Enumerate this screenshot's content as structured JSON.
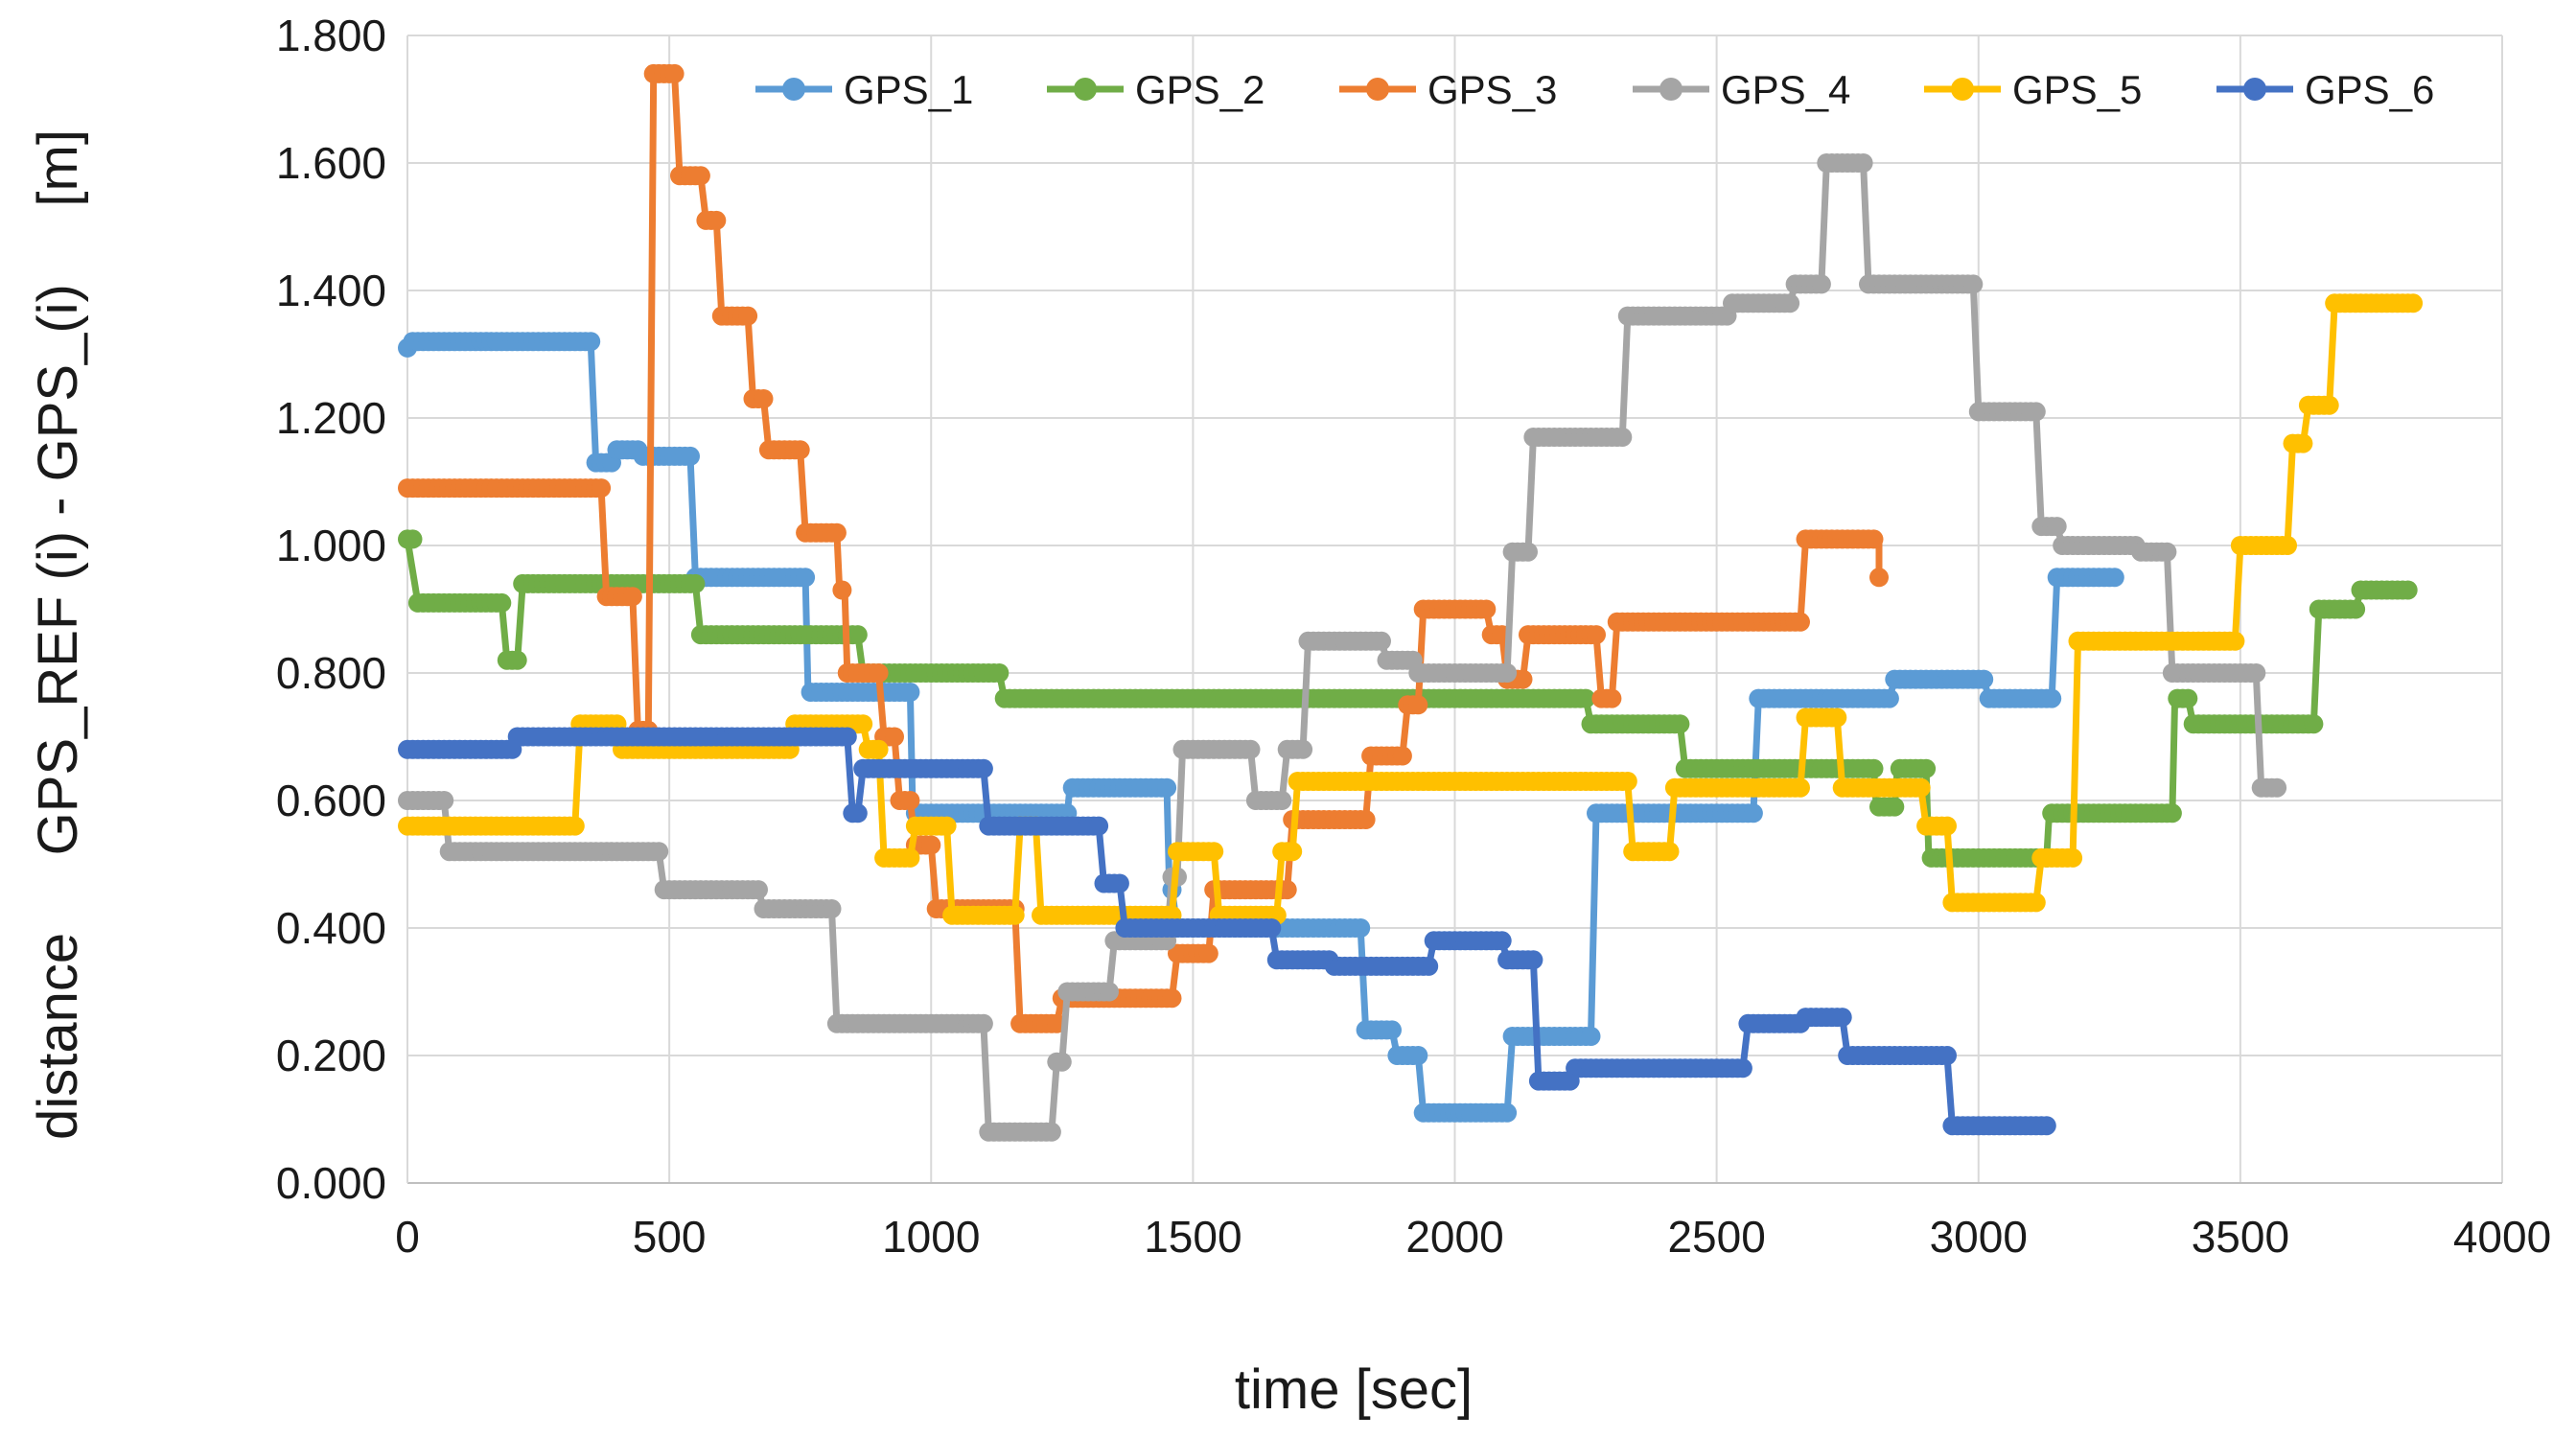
{
  "chart_data": {
    "type": "line",
    "title": "",
    "xlabel": "time [sec]",
    "ylabel": "distance     GPS_REF (i) - GPS_(i)     [m]",
    "xlim": [
      0,
      4000
    ],
    "ylim": [
      0,
      1.8
    ],
    "x_ticks": [
      0,
      500,
      1000,
      1500,
      2000,
      2500,
      3000,
      3500,
      4000
    ],
    "x_tick_labels": [
      "0",
      "500",
      "1000",
      "1500",
      "2000",
      "2500",
      "3000",
      "3500",
      "4000"
    ],
    "y_ticks": [
      0,
      0.2,
      0.4,
      0.6,
      0.8,
      1.0,
      1.2,
      1.4,
      1.6,
      1.8
    ],
    "y_tick_labels": [
      "0.000",
      "0.200",
      "0.400",
      "0.600",
      "0.800",
      "1.000",
      "1.200",
      "1.400",
      "1.600",
      "1.800"
    ],
    "grid": true,
    "legend_position": "top",
    "marker_interval_sec": 10,
    "series": [
      {
        "name": "GPS_1",
        "color": "#5B9BD5",
        "steps": [
          [
            0,
            1.31
          ],
          [
            10,
            1.32
          ],
          [
            350,
            1.32
          ],
          [
            360,
            1.13
          ],
          [
            390,
            1.13
          ],
          [
            395,
            1.15
          ],
          [
            440,
            1.15
          ],
          [
            445,
            1.14
          ],
          [
            540,
            1.14
          ],
          [
            550,
            0.95
          ],
          [
            760,
            0.95
          ],
          [
            765,
            0.77
          ],
          [
            960,
            0.77
          ],
          [
            965,
            0.58
          ],
          [
            1130,
            0.58
          ],
          [
            1135,
            0.58
          ],
          [
            1260,
            0.58
          ],
          [
            1265,
            0.62
          ],
          [
            1450,
            0.62
          ],
          [
            1455,
            0.46
          ],
          [
            1460,
            0.46
          ],
          [
            1470,
            0.4
          ],
          [
            1820,
            0.4
          ],
          [
            1830,
            0.24
          ],
          [
            1880,
            0.24
          ],
          [
            1890,
            0.2
          ],
          [
            1930,
            0.2
          ],
          [
            1940,
            0.11
          ],
          [
            2100,
            0.11
          ],
          [
            2110,
            0.23
          ],
          [
            2260,
            0.23
          ],
          [
            2270,
            0.58
          ],
          [
            2570,
            0.58
          ],
          [
            2580,
            0.76
          ],
          [
            2760,
            0.76
          ],
          [
            2765,
            0.76
          ],
          [
            2830,
            0.76
          ],
          [
            2840,
            0.79
          ],
          [
            3010,
            0.79
          ],
          [
            3020,
            0.76
          ],
          [
            3140,
            0.76
          ],
          [
            3150,
            0.95
          ],
          [
            3260,
            0.95
          ]
        ]
      },
      {
        "name": "GPS_2",
        "color": "#70AD47",
        "steps": [
          [
            0,
            1.01
          ],
          [
            20,
            0.91
          ],
          [
            180,
            0.91
          ],
          [
            190,
            0.82
          ],
          [
            210,
            0.82
          ],
          [
            220,
            0.94
          ],
          [
            550,
            0.94
          ],
          [
            560,
            0.86
          ],
          [
            860,
            0.86
          ],
          [
            870,
            0.8
          ],
          [
            1130,
            0.8
          ],
          [
            1140,
            0.76
          ],
          [
            2250,
            0.76
          ],
          [
            2260,
            0.72
          ],
          [
            2430,
            0.72
          ],
          [
            2440,
            0.65
          ],
          [
            2800,
            0.65
          ],
          [
            2805,
            0.59
          ],
          [
            2840,
            0.59
          ],
          [
            2845,
            0.65
          ],
          [
            2900,
            0.65
          ],
          [
            2905,
            0.51
          ],
          [
            3130,
            0.51
          ],
          [
            3135,
            0.58
          ],
          [
            3370,
            0.58
          ],
          [
            3375,
            0.76
          ],
          [
            3400,
            0.76
          ],
          [
            3410,
            0.72
          ],
          [
            3640,
            0.72
          ],
          [
            3650,
            0.9
          ],
          [
            3720,
            0.9
          ],
          [
            3730,
            0.93
          ],
          [
            3820,
            0.93
          ]
        ]
      },
      {
        "name": "GPS_3",
        "color": "#ED7D31",
        "steps": [
          [
            0,
            1.09
          ],
          [
            370,
            1.09
          ],
          [
            380,
            0.92
          ],
          [
            430,
            0.92
          ],
          [
            440,
            0.71
          ],
          [
            460,
            0.71
          ],
          [
            470,
            1.74
          ],
          [
            510,
            1.74
          ],
          [
            520,
            1.58
          ],
          [
            560,
            1.58
          ],
          [
            570,
            1.51
          ],
          [
            590,
            1.51
          ],
          [
            600,
            1.36
          ],
          [
            650,
            1.36
          ],
          [
            660,
            1.23
          ],
          [
            680,
            1.23
          ],
          [
            690,
            1.15
          ],
          [
            750,
            1.15
          ],
          [
            760,
            1.02
          ],
          [
            820,
            1.02
          ],
          [
            825,
            0.93
          ],
          [
            835,
            0.93
          ],
          [
            840,
            0.8
          ],
          [
            900,
            0.8
          ],
          [
            910,
            0.7
          ],
          [
            930,
            0.7
          ],
          [
            940,
            0.6
          ],
          [
            960,
            0.6
          ],
          [
            970,
            0.53
          ],
          [
            1000,
            0.53
          ],
          [
            1010,
            0.43
          ],
          [
            1160,
            0.43
          ],
          [
            1170,
            0.25
          ],
          [
            1240,
            0.25
          ],
          [
            1250,
            0.29
          ],
          [
            1460,
            0.29
          ],
          [
            1470,
            0.36
          ],
          [
            1530,
            0.36
          ],
          [
            1540,
            0.46
          ],
          [
            1680,
            0.46
          ],
          [
            1690,
            0.57
          ],
          [
            1830,
            0.57
          ],
          [
            1840,
            0.67
          ],
          [
            1900,
            0.67
          ],
          [
            1910,
            0.75
          ],
          [
            1930,
            0.75
          ],
          [
            1940,
            0.9
          ],
          [
            2060,
            0.9
          ],
          [
            2070,
            0.86
          ],
          [
            2090,
            0.86
          ],
          [
            2100,
            0.79
          ],
          [
            2130,
            0.79
          ],
          [
            2140,
            0.86
          ],
          [
            2270,
            0.86
          ],
          [
            2280,
            0.76
          ],
          [
            2300,
            0.76
          ],
          [
            2310,
            0.88
          ],
          [
            2660,
            0.88
          ],
          [
            2670,
            1.01
          ],
          [
            2810,
            1.01
          ],
          [
            2810,
            0.95
          ]
        ]
      },
      {
        "name": "GPS_4",
        "color": "#A5A5A5",
        "steps": [
          [
            0,
            0.6
          ],
          [
            70,
            0.6
          ],
          [
            80,
            0.52
          ],
          [
            480,
            0.52
          ],
          [
            490,
            0.46
          ],
          [
            670,
            0.46
          ],
          [
            680,
            0.43
          ],
          [
            810,
            0.43
          ],
          [
            820,
            0.25
          ],
          [
            1100,
            0.25
          ],
          [
            1110,
            0.08
          ],
          [
            1230,
            0.08
          ],
          [
            1240,
            0.19
          ],
          [
            1250,
            0.19
          ],
          [
            1260,
            0.3
          ],
          [
            1340,
            0.3
          ],
          [
            1350,
            0.38
          ],
          [
            1450,
            0.38
          ],
          [
            1460,
            0.48
          ],
          [
            1470,
            0.48
          ],
          [
            1480,
            0.68
          ],
          [
            1610,
            0.68
          ],
          [
            1620,
            0.6
          ],
          [
            1670,
            0.6
          ],
          [
            1680,
            0.68
          ],
          [
            1710,
            0.68
          ],
          [
            1720,
            0.85
          ],
          [
            1860,
            0.85
          ],
          [
            1870,
            0.82
          ],
          [
            1920,
            0.82
          ],
          [
            1930,
            0.8
          ],
          [
            2100,
            0.8
          ],
          [
            2110,
            0.99
          ],
          [
            2140,
            0.99
          ],
          [
            2150,
            1.17
          ],
          [
            2320,
            1.17
          ],
          [
            2330,
            1.36
          ],
          [
            2520,
            1.36
          ],
          [
            2530,
            1.38
          ],
          [
            2640,
            1.38
          ],
          [
            2650,
            1.41
          ],
          [
            2700,
            1.41
          ],
          [
            2710,
            1.6
          ],
          [
            2780,
            1.6
          ],
          [
            2790,
            1.41
          ],
          [
            2990,
            1.41
          ],
          [
            3000,
            1.21
          ],
          [
            3110,
            1.21
          ],
          [
            3120,
            1.03
          ],
          [
            3150,
            1.03
          ],
          [
            3160,
            1.0
          ],
          [
            3300,
            1.0
          ],
          [
            3310,
            0.99
          ],
          [
            3360,
            0.99
          ],
          [
            3370,
            0.8
          ],
          [
            3530,
            0.8
          ],
          [
            3540,
            0.62
          ],
          [
            3570,
            0.62
          ]
        ]
      },
      {
        "name": "GPS_5",
        "color": "#FFC000",
        "steps": [
          [
            0,
            0.56
          ],
          [
            320,
            0.56
          ],
          [
            330,
            0.72
          ],
          [
            400,
            0.72
          ],
          [
            410,
            0.68
          ],
          [
            730,
            0.68
          ],
          [
            740,
            0.72
          ],
          [
            870,
            0.72
          ],
          [
            880,
            0.68
          ],
          [
            900,
            0.68
          ],
          [
            910,
            0.51
          ],
          [
            960,
            0.51
          ],
          [
            970,
            0.56
          ],
          [
            1030,
            0.56
          ],
          [
            1040,
            0.42
          ],
          [
            1160,
            0.42
          ],
          [
            1170,
            0.56
          ],
          [
            1200,
            0.56
          ],
          [
            1210,
            0.42
          ],
          [
            1460,
            0.42
          ],
          [
            1470,
            0.52
          ],
          [
            1540,
            0.52
          ],
          [
            1550,
            0.42
          ],
          [
            1660,
            0.42
          ],
          [
            1670,
            0.52
          ],
          [
            1690,
            0.52
          ],
          [
            1700,
            0.63
          ],
          [
            2330,
            0.63
          ],
          [
            2340,
            0.52
          ],
          [
            2410,
            0.52
          ],
          [
            2420,
            0.62
          ],
          [
            2660,
            0.62
          ],
          [
            2670,
            0.73
          ],
          [
            2730,
            0.73
          ],
          [
            2740,
            0.62
          ],
          [
            2890,
            0.62
          ],
          [
            2900,
            0.56
          ],
          [
            2940,
            0.56
          ],
          [
            2950,
            0.44
          ],
          [
            3110,
            0.44
          ],
          [
            3120,
            0.51
          ],
          [
            3180,
            0.51
          ],
          [
            3190,
            0.85
          ],
          [
            3490,
            0.85
          ],
          [
            3500,
            1.0
          ],
          [
            3590,
            1.0
          ],
          [
            3600,
            1.16
          ],
          [
            3620,
            1.16
          ],
          [
            3630,
            1.22
          ],
          [
            3670,
            1.22
          ],
          [
            3680,
            1.38
          ],
          [
            3830,
            1.38
          ]
        ]
      },
      {
        "name": "GPS_6",
        "color": "#4472C4",
        "steps": [
          [
            0,
            0.68
          ],
          [
            200,
            0.68
          ],
          [
            210,
            0.7
          ],
          [
            840,
            0.7
          ],
          [
            850,
            0.58
          ],
          [
            860,
            0.58
          ],
          [
            870,
            0.65
          ],
          [
            1100,
            0.65
          ],
          [
            1110,
            0.56
          ],
          [
            1320,
            0.56
          ],
          [
            1330,
            0.47
          ],
          [
            1360,
            0.47
          ],
          [
            1370,
            0.4
          ],
          [
            1650,
            0.4
          ],
          [
            1660,
            0.35
          ],
          [
            1760,
            0.35
          ],
          [
            1770,
            0.34
          ],
          [
            1950,
            0.34
          ],
          [
            1960,
            0.38
          ],
          [
            2090,
            0.38
          ],
          [
            2100,
            0.35
          ],
          [
            2150,
            0.35
          ],
          [
            2160,
            0.16
          ],
          [
            2220,
            0.16
          ],
          [
            2230,
            0.18
          ],
          [
            2550,
            0.18
          ],
          [
            2560,
            0.25
          ],
          [
            2660,
            0.25
          ],
          [
            2670,
            0.26
          ],
          [
            2740,
            0.26
          ],
          [
            2750,
            0.2
          ],
          [
            2940,
            0.2
          ],
          [
            2950,
            0.09
          ],
          [
            3130,
            0.09
          ]
        ]
      }
    ]
  }
}
